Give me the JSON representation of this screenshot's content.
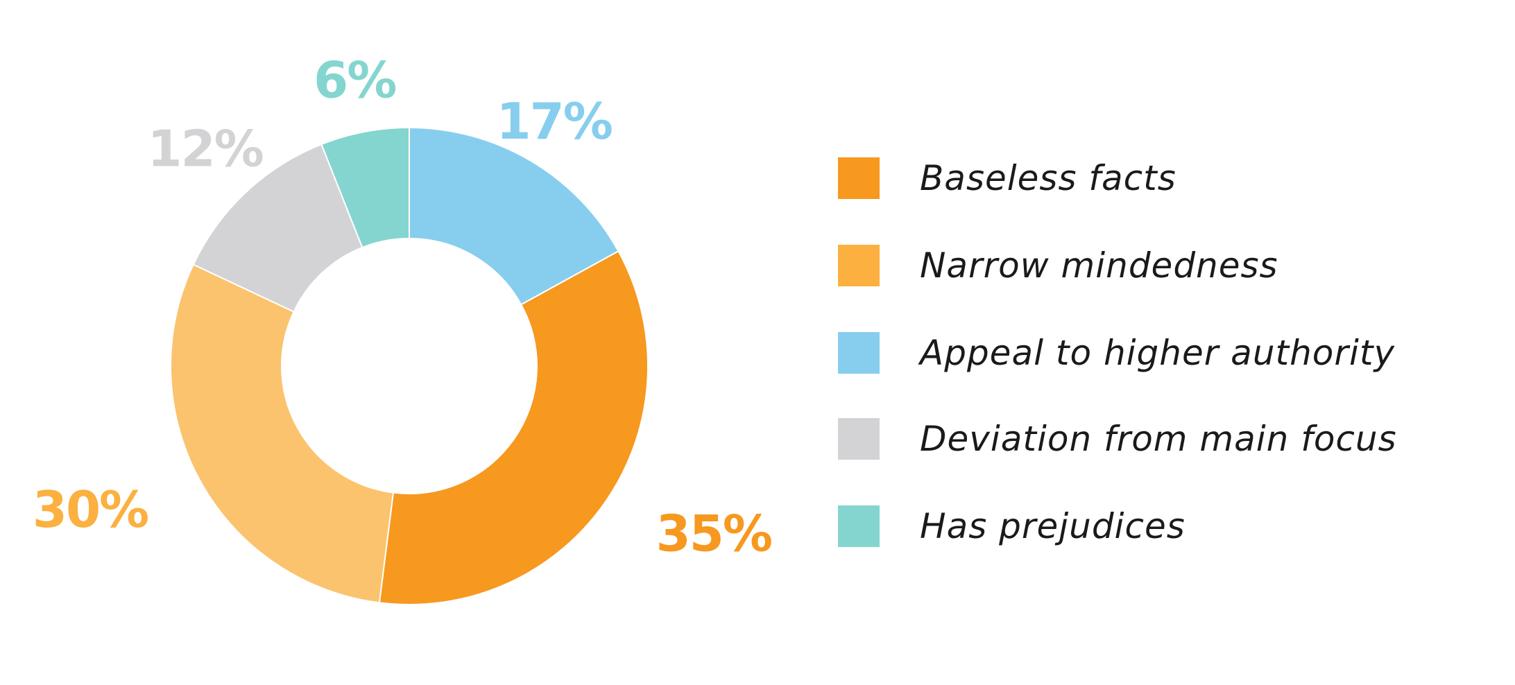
{
  "chart_data": {
    "type": "pie",
    "variant": "donut",
    "title": "",
    "categories": [
      "Baseless facts",
      "Narrow mindedness",
      "Appeal to higher authority",
      "Deviation from main focus",
      "Has prejudices"
    ],
    "values": [
      35,
      30,
      17,
      12,
      6
    ],
    "value_labels": [
      "35%",
      "30%",
      "17%",
      "12%",
      "6%"
    ],
    "colors": [
      "#F7981F",
      "#FBC36E",
      "#87CEEE",
      "#D3D3D5",
      "#84D5CF"
    ],
    "label_colors": [
      "#F7981F",
      "#FBB040",
      "#87CEEE",
      "#D3D3D5",
      "#84D5CF"
    ],
    "legend_colors": [
      "#F7981F",
      "#FBB040",
      "#87CEEE",
      "#D3D3D5",
      "#84D5CF"
    ],
    "legend_position": "right",
    "start_angle_deg": 0,
    "direction": "clockwise"
  },
  "legend": {
    "items": [
      {
        "label": "Baseless facts"
      },
      {
        "label": "Narrow mindedness"
      },
      {
        "label": "Appeal to higher authority"
      },
      {
        "label": "Deviation from main focus"
      },
      {
        "label": "Has prejudices"
      }
    ]
  }
}
